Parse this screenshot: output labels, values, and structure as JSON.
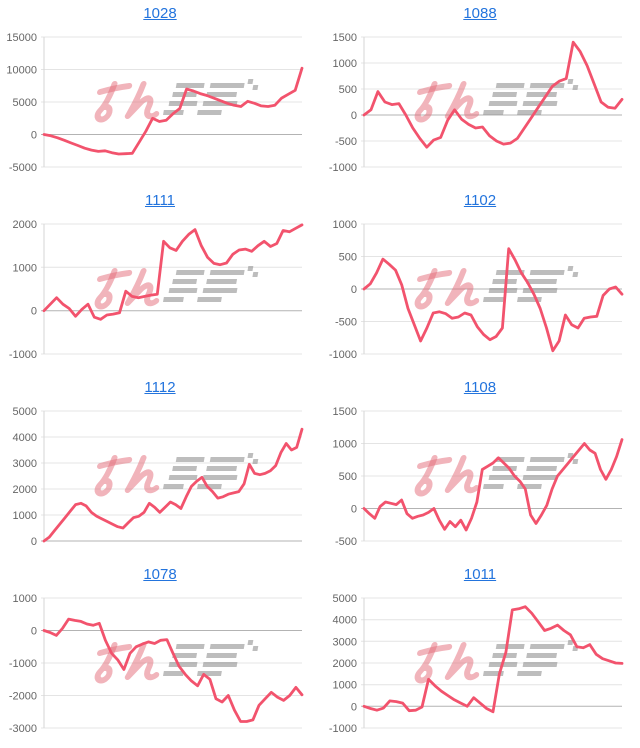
{
  "style": {
    "line_color": "#f2536d",
    "grid_line_color": "#e4e4e4",
    "zero_line_color": "#b3b3b3",
    "axis_line_color": "#d6d6d6",
    "tick_label_color": "#666666",
    "title_link_color": "#2374dd"
  },
  "watermark": {
    "text": "みんレポ",
    "pink_color": "rgba(228,105,120,0.50)",
    "gray_color": "rgba(148,148,148,0.62)"
  },
  "chart_data": [
    {
      "type": "line",
      "title": "1028",
      "ylim": [
        -5000,
        15000
      ],
      "yticks": [
        15000,
        10000,
        5000,
        0,
        -5000
      ],
      "values": [
        0,
        -200,
        -500,
        -900,
        -1300,
        -1700,
        -2100,
        -2400,
        -2600,
        -2500,
        -2800,
        -3000,
        -2950,
        -2900,
        -1200,
        500,
        2500,
        2000,
        2200,
        3200,
        4000,
        7000,
        6700,
        6300,
        6000,
        5600,
        5200,
        4800,
        4500,
        4300,
        5100,
        4800,
        4400,
        4300,
        4500,
        5600,
        6200,
        6800,
        10200
      ]
    },
    {
      "type": "line",
      "title": "1088",
      "ylim": [
        -1000,
        1500
      ],
      "yticks": [
        1500,
        1000,
        500,
        0,
        -500,
        -1000
      ],
      "values": [
        0,
        100,
        450,
        250,
        200,
        220,
        0,
        -250,
        -450,
        -620,
        -480,
        -430,
        -100,
        100,
        -80,
        -180,
        -250,
        -230,
        -400,
        -500,
        -560,
        -540,
        -450,
        -250,
        -50,
        150,
        350,
        550,
        650,
        700,
        1400,
        1220,
        950,
        600,
        250,
        150,
        130,
        300
      ]
    },
    {
      "type": "line",
      "title": "1111",
      "ylim": [
        -1000,
        2000
      ],
      "yticks": [
        2000,
        1000,
        0,
        -1000
      ],
      "values": [
        0,
        150,
        300,
        150,
        50,
        -130,
        30,
        150,
        -150,
        -200,
        -100,
        -80,
        -50,
        450,
        330,
        300,
        330,
        360,
        380,
        1600,
        1450,
        1390,
        1600,
        1760,
        1870,
        1500,
        1230,
        1090,
        1060,
        1100,
        1300,
        1400,
        1420,
        1370,
        1500,
        1600,
        1480,
        1550,
        1850,
        1820,
        1900,
        1980
      ]
    },
    {
      "type": "line",
      "title": "1102",
      "ylim": [
        -1000,
        1000
      ],
      "yticks": [
        1000,
        500,
        0,
        -500,
        -1000
      ],
      "values": [
        0,
        80,
        250,
        460,
        380,
        290,
        60,
        -300,
        -550,
        -800,
        -600,
        -370,
        -350,
        -380,
        -450,
        -430,
        -370,
        -400,
        -580,
        -700,
        -780,
        -730,
        -600,
        620,
        450,
        250,
        100,
        -80,
        -300,
        -600,
        -950,
        -800,
        -400,
        -550,
        -600,
        -450,
        -430,
        -420,
        -100,
        0,
        30,
        -80
      ]
    },
    {
      "type": "line",
      "title": "1112",
      "ylim": [
        0,
        5000
      ],
      "yticks": [
        5000,
        4000,
        3000,
        2000,
        1000,
        0
      ],
      "values": [
        0,
        150,
        400,
        650,
        900,
        1150,
        1400,
        1450,
        1350,
        1100,
        950,
        850,
        750,
        650,
        550,
        500,
        700,
        900,
        950,
        1100,
        1450,
        1300,
        1100,
        1300,
        1500,
        1400,
        1250,
        1700,
        2100,
        2300,
        2450,
        2100,
        1900,
        1650,
        1700,
        1800,
        1850,
        1900,
        2200,
        2950,
        2600,
        2550,
        2600,
        2700,
        2900,
        3400,
        3750,
        3500,
        3600,
        4300
      ]
    },
    {
      "type": "line",
      "title": "1108",
      "ylim": [
        -500,
        1500
      ],
      "yticks": [
        1500,
        1000,
        500,
        0,
        -500
      ],
      "values": [
        0,
        -80,
        -150,
        30,
        100,
        80,
        60,
        130,
        -80,
        -150,
        -120,
        -100,
        -60,
        0,
        -180,
        -320,
        -200,
        -280,
        -180,
        -330,
        -150,
        100,
        600,
        650,
        700,
        780,
        700,
        620,
        500,
        420,
        300,
        -100,
        -230,
        -100,
        50,
        300,
        500,
        600,
        700,
        800,
        900,
        1000,
        900,
        850,
        600,
        450,
        600,
        800,
        1060
      ]
    },
    {
      "type": "line",
      "title": "1078",
      "ylim": [
        -3000,
        1000
      ],
      "yticks": [
        1000,
        0,
        -1000,
        -2000,
        -3000
      ],
      "values": [
        0,
        -60,
        -150,
        60,
        350,
        310,
        280,
        200,
        160,
        220,
        -300,
        -700,
        -900,
        -1200,
        -700,
        -500,
        -420,
        -350,
        -400,
        -300,
        -280,
        -700,
        -1100,
        -1350,
        -1550,
        -1700,
        -1350,
        -1500,
        -2100,
        -2200,
        -2000,
        -2450,
        -2800,
        -2800,
        -2750,
        -2300,
        -2100,
        -1900,
        -2050,
        -2150,
        -2000,
        -1750,
        -1980
      ]
    },
    {
      "type": "line",
      "title": "1011",
      "ylim": [
        -1000,
        5000
      ],
      "yticks": [
        5000,
        4000,
        3000,
        2000,
        1000,
        0,
        -1000
      ],
      "values": [
        0,
        -100,
        -180,
        -80,
        250,
        220,
        150,
        -200,
        -180,
        -30,
        1250,
        950,
        700,
        500,
        300,
        150,
        0,
        400,
        150,
        -100,
        -250,
        1500,
        2500,
        4450,
        4500,
        4600,
        4300,
        3900,
        3500,
        3600,
        3750,
        3500,
        3300,
        2750,
        2700,
        2850,
        2400,
        2200,
        2100,
        2000,
        1980
      ]
    }
  ]
}
